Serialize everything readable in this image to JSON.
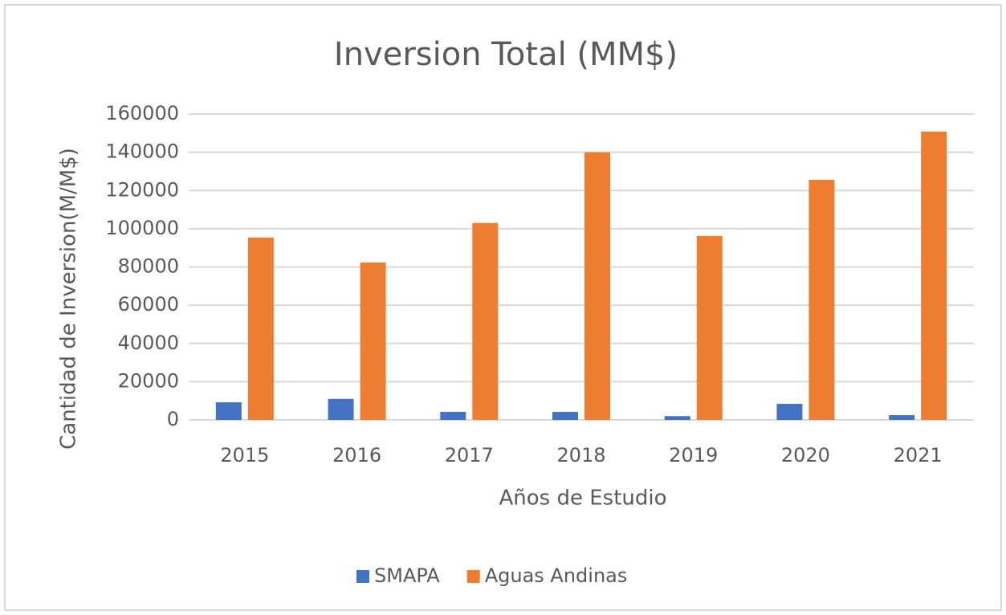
{
  "chart_data": {
    "type": "bar",
    "title": "Inversion Total (MM$)",
    "x_label": "Años de Estudio",
    "y_label": "Cantidad de Inversion(M/M$)",
    "categories": [
      "2015",
      "2016",
      "2017",
      "2018",
      "2019",
      "2020",
      "2021"
    ],
    "series": [
      {
        "name": "SMAPA",
        "color": "#4472c4",
        "values": [
          9200,
          11000,
          4200,
          4200,
          2000,
          8400,
          2500
        ]
      },
      {
        "name": "Aguas Andinas",
        "color": "#ed7d31",
        "values": [
          95400,
          82300,
          103000,
          140000,
          96200,
          125600,
          150800
        ]
      }
    ],
    "ylim": [
      0,
      160000
    ],
    "yticks": [
      0,
      20000,
      40000,
      60000,
      80000,
      100000,
      120000,
      140000,
      160000
    ],
    "grid": true,
    "legend": "bottom"
  }
}
